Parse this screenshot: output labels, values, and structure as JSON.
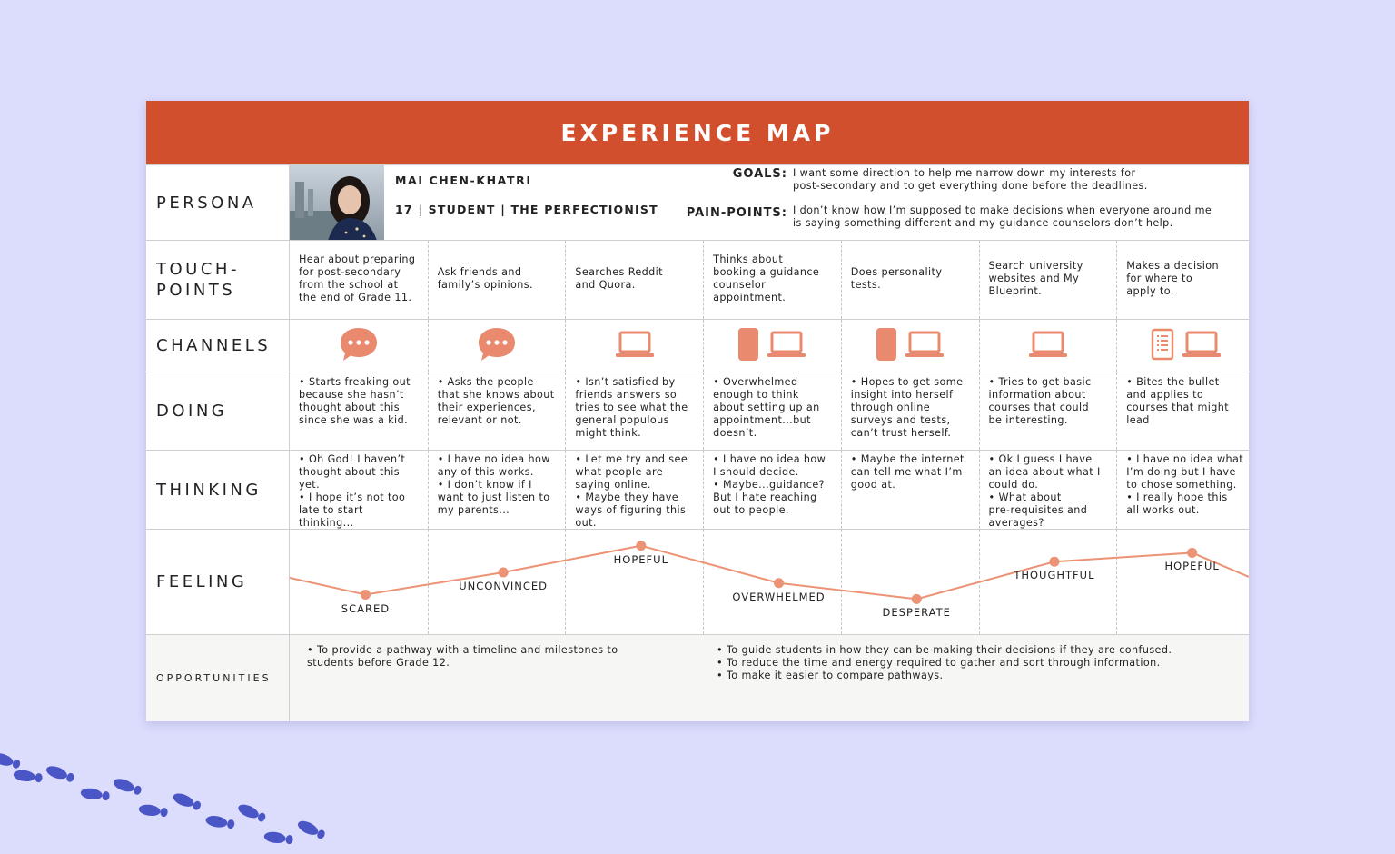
{
  "header": {
    "title": "EXPERIENCE MAP"
  },
  "rows": {
    "persona": "PERSONA",
    "touchpoints": "TOUCH-\nPOINTS",
    "channels": "CHANNELS",
    "doing": "DOING",
    "thinking": "THINKING",
    "feeling": "FEELING",
    "opportunities": "OPPORTUNITIES"
  },
  "persona": {
    "name": "MAI CHEN-KHATRI",
    "subtitle": "17 | STUDENT | THE PERFECTIONIST",
    "goals_label": "GOALS:",
    "goals_text": "I want some direction to help me narrow down my interests for\npost-secondary and to get everything done before the deadlines.",
    "pain_label": "PAIN-POINTS:",
    "pain_text": "I don’t know how I’m supposed to make decisions when everyone around me\nis saying something different and my guidance counselors don’t help."
  },
  "stages": [
    {
      "touchpoint": "Hear about preparing\nfor post-secondary\nfrom the school at\nthe end of Grade 11.",
      "channels": [
        "chat-icon"
      ],
      "doing": "• Starts freaking out\nbecause she hasn’t\nthought about this\nsince she was a kid.",
      "thinking": "• Oh God! I haven’t\nthought about this\nyet.\n• I hope it’s not too\nlate to start\nthinking...",
      "feeling": "SCARED",
      "feeling_level": 0.25
    },
    {
      "touchpoint": "Ask friends and\nfamily’s opinions.",
      "channels": [
        "chat-icon"
      ],
      "doing": "• Asks the people\nthat she knows about\ntheir experiences,\nrelevant or not.",
      "thinking": "• I have no idea how\nany of this works.\n• I don’t know if I\nwant to just listen to\nmy parents...",
      "feeling": "UNCONVINCED",
      "feeling_level": 0.5
    },
    {
      "touchpoint": "Searches Reddit\nand Quora.",
      "channels": [
        "laptop-icon"
      ],
      "doing": "• Isn’t satisfied by\nfriends answers so\ntries to see what the\ngeneral populous\nmight think.",
      "thinking": "• Let me try and see\nwhat people are\nsaying online.\n• Maybe they have\nways of figuring this\nout.",
      "feeling": "HOPEFUL",
      "feeling_level": 0.8
    },
    {
      "touchpoint": "Thinks about\nbooking a guidance\ncounselor\nappointment.",
      "channels": [
        "phone-icon",
        "laptop-icon"
      ],
      "doing": "• Overwhelmed\nenough to think\nabout setting up an\nappointment...but\ndoesn’t.",
      "thinking": "• I have no idea how\nI should decide.\n• Maybe...guidance?\nBut I hate reaching\nout to people.",
      "feeling": "OVERWHELMED",
      "feeling_level": 0.38
    },
    {
      "touchpoint": "Does personality\ntests.",
      "channels": [
        "phone-icon",
        "laptop-icon"
      ],
      "doing": "• Hopes to get some\ninsight into herself\nthrough online\nsurveys and tests,\ncan’t trust herself.",
      "thinking": "• Maybe the internet\ncan tell me what I’m\ngood at.",
      "feeling": "DESPERATE",
      "feeling_level": 0.2
    },
    {
      "touchpoint": "Search university\nwebsites and My\nBlueprint.",
      "channels": [
        "laptop-icon"
      ],
      "doing": "• Tries to get basic\ninformation about\ncourses that could\nbe interesting.",
      "thinking": "• Ok I guess I have\nan idea about what I\ncould do.\n• What about\npre-requisites and\naverages?",
      "feeling": "THOUGHTFUL",
      "feeling_level": 0.62
    },
    {
      "touchpoint": "Makes a decision\nfor where to\napply to.",
      "channels": [
        "document-icon",
        "laptop-icon"
      ],
      "doing": "• Bites the bullet\nand applies to\ncourses that might\nlead",
      "thinking": "• I have no idea what\nI’m doing but I have\nto chose something.\n• I really hope this\nall works out.",
      "feeling": "HOPEFUL",
      "feeling_level": 0.72
    }
  ],
  "opportunities": {
    "left": "• To provide a pathway with a timeline and milestones to\nstudents before Grade 12.",
    "right": "• To guide students in how they can be making their decisions if they are confused.\n• To reduce the time and energy required to gather and sort through information.\n• To make it easier to compare pathways."
  },
  "colors": {
    "accent": "#d24f2d",
    "icon": "#e98a6e",
    "curve": "#ec9275",
    "background": "#dcdcfd",
    "footprints": "#4a55c6"
  }
}
